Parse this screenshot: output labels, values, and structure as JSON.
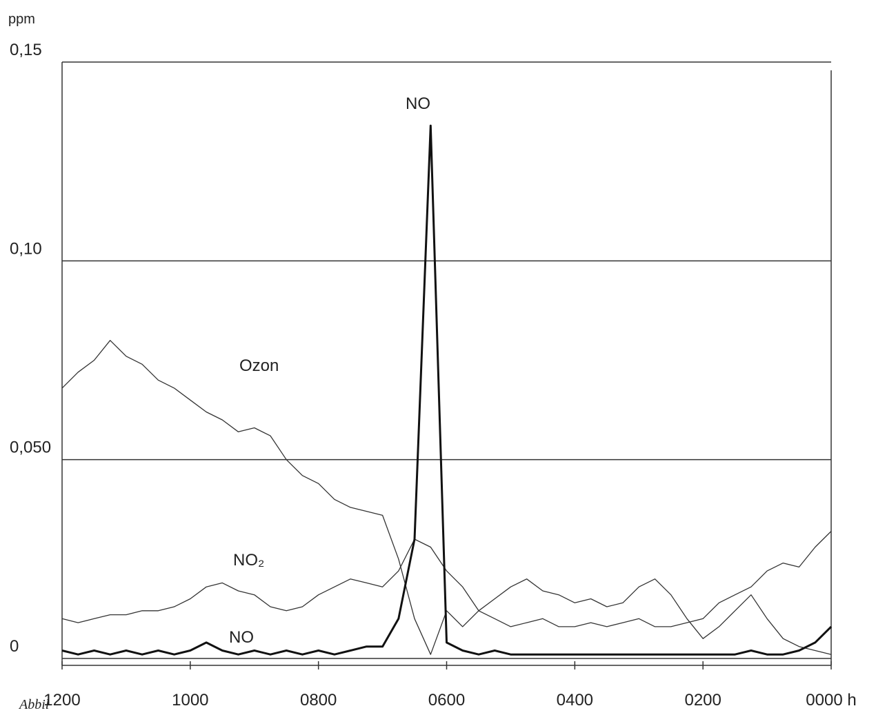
{
  "chart_data": {
    "type": "line",
    "y_label": "ppm",
    "annotation": "NO",
    "caption_fragment": "Abbil",
    "x": [
      12,
      11.75,
      11.5,
      11.25,
      11,
      10.75,
      10.5,
      10.25,
      10,
      9.75,
      9.5,
      9.25,
      9,
      8.75,
      8.5,
      8.25,
      8,
      7.75,
      7.5,
      7.25,
      7,
      6.75,
      6.5,
      6.25,
      6,
      5.75,
      5.5,
      5.25,
      5,
      4.75,
      4.5,
      4.25,
      4,
      3.75,
      3.5,
      3.25,
      3,
      2.75,
      2.5,
      2.25,
      2,
      1.75,
      1.5,
      1.25,
      1,
      0.75,
      0.5,
      0.25,
      0
    ],
    "xlim": [
      12,
      0
    ],
    "xticks": [
      {
        "value": 12,
        "label": "1200"
      },
      {
        "value": 10,
        "label": "1000"
      },
      {
        "value": 8,
        "label": "0800"
      },
      {
        "value": 6,
        "label": "0600"
      },
      {
        "value": 4,
        "label": "0400"
      },
      {
        "value": 2,
        "label": "0200"
      },
      {
        "value": 0,
        "label": "0000 h"
      }
    ],
    "ylim": [
      0,
      0.15
    ],
    "yticks": [
      0,
      {
        "value": 0.05,
        "label": "0,050"
      },
      {
        "value": 0.1,
        "label": "0,10"
      },
      {
        "value": 0.15,
        "label": "0,15"
      }
    ],
    "grid": true,
    "series": [
      {
        "name": "Ozon",
        "color": "#333333",
        "values": [
          0.068,
          0.072,
          0.075,
          0.08,
          0.076,
          0.074,
          0.07,
          0.068,
          0.065,
          0.062,
          0.06,
          0.057,
          0.058,
          0.056,
          0.05,
          0.046,
          0.044,
          0.04,
          0.038,
          0.037,
          0.036,
          0.025,
          0.01,
          0.001,
          0.012,
          0.008,
          0.012,
          0.015,
          0.018,
          0.02,
          0.017,
          0.016,
          0.014,
          0.015,
          0.013,
          0.014,
          0.018,
          0.02,
          0.016,
          0.01,
          0.005,
          0.008,
          0.012,
          0.016,
          0.01,
          0.005,
          0.003,
          0.002,
          0.001
        ]
      },
      {
        "name": "NO₂",
        "color": "#333333",
        "values": [
          0.01,
          0.009,
          0.01,
          0.011,
          0.011,
          0.012,
          0.012,
          0.013,
          0.015,
          0.018,
          0.019,
          0.017,
          0.016,
          0.013,
          0.012,
          0.013,
          0.016,
          0.018,
          0.02,
          0.019,
          0.018,
          0.022,
          0.03,
          0.028,
          0.022,
          0.018,
          0.012,
          0.01,
          0.008,
          0.009,
          0.01,
          0.008,
          0.008,
          0.009,
          0.008,
          0.009,
          0.01,
          0.008,
          0.008,
          0.009,
          0.01,
          0.014,
          0.016,
          0.018,
          0.022,
          0.024,
          0.023,
          0.028,
          0.032
        ]
      },
      {
        "name": "NO",
        "color": "#111111",
        "values": [
          0.002,
          0.001,
          0.002,
          0.001,
          0.002,
          0.001,
          0.002,
          0.001,
          0.002,
          0.004,
          0.002,
          0.001,
          0.002,
          0.001,
          0.002,
          0.001,
          0.002,
          0.001,
          0.002,
          0.003,
          0.003,
          0.01,
          0.03,
          0.134,
          0.004,
          0.002,
          0.001,
          0.002,
          0.001,
          0.001,
          0.001,
          0.001,
          0.001,
          0.001,
          0.001,
          0.001,
          0.001,
          0.001,
          0.001,
          0.001,
          0.001,
          0.001,
          0.001,
          0.002,
          0.001,
          0.001,
          0.002,
          0.004,
          0.008
        ]
      }
    ]
  }
}
